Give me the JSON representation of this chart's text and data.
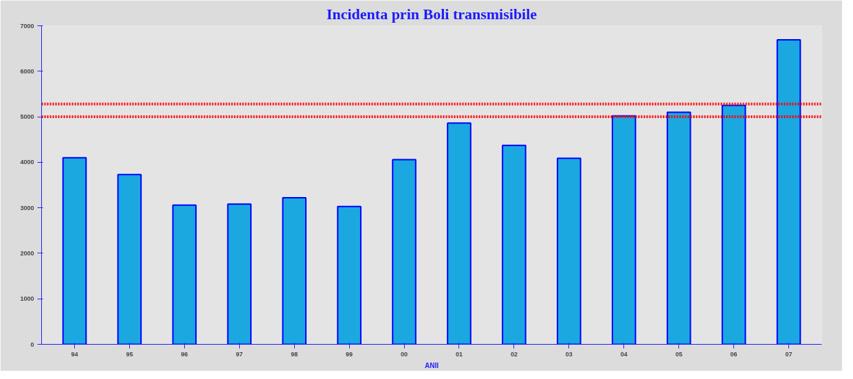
{
  "chart_data": {
    "type": "bar",
    "title": "Incidenta prin Boli transmisibile",
    "xlabel": "ANII",
    "categories": [
      "94",
      "95",
      "96",
      "97",
      "98",
      "99",
      "00",
      "01",
      "02",
      "03",
      "04",
      "05",
      "06",
      "07"
    ],
    "series": [
      {
        "color": "#1ba8e0",
        "values": [
          4100,
          3730,
          3060,
          3080,
          3220,
          3030,
          4060,
          4860,
          4370,
          4090,
          5020,
          5100,
          5250,
          6690
        ]
      }
    ],
    "ylim": [
      0,
      7000
    ],
    "yticks": [
      0,
      1000,
      2000,
      3000,
      4000,
      5000,
      6000,
      7000
    ],
    "ref_lines": [
      {
        "axis": "y",
        "value": 5280,
        "color": "#ff0000",
        "line_style": "dotted"
      },
      {
        "axis": "y",
        "value": 5000,
        "color": "#ff0000",
        "line_style": "dotted"
      }
    ]
  }
}
